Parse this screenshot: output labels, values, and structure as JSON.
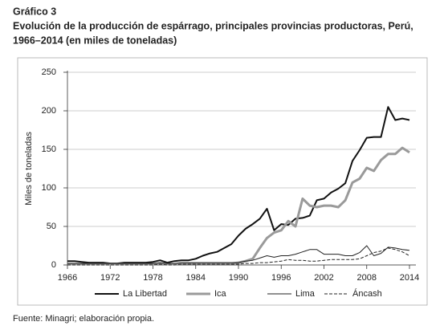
{
  "chart_data": {
    "type": "line",
    "heading": "Gráfico 3",
    "title": [
      "Evolución de la producción de espárrago, principales provincias productoras, Perú,",
      "1966–2014 (en miles de toneladas)"
    ],
    "ylabel": "Miles de toneladas",
    "source": "Fuente: Minagri; elaboración propia.",
    "x": [
      1966,
      1967,
      1968,
      1969,
      1970,
      1971,
      1972,
      1973,
      1974,
      1975,
      1976,
      1977,
      1978,
      1979,
      1980,
      1981,
      1982,
      1983,
      1984,
      1985,
      1986,
      1987,
      1988,
      1989,
      1990,
      1991,
      1992,
      1993,
      1994,
      1995,
      1996,
      1997,
      1998,
      1999,
      2000,
      2001,
      2002,
      2003,
      2004,
      2005,
      2006,
      2007,
      2008,
      2009,
      2010,
      2011,
      2012,
      2013,
      2014
    ],
    "series": [
      {
        "name": "La Libertad",
        "color": "#111111",
        "values": [
          5,
          5,
          4,
          3,
          3,
          3,
          2,
          2,
          3,
          3,
          3,
          3,
          4,
          6,
          3,
          5,
          6,
          6,
          8,
          12,
          15,
          17,
          22,
          27,
          38,
          47,
          53,
          60,
          73,
          45,
          53,
          52,
          60,
          61,
          64,
          84,
          86,
          94,
          99,
          106,
          135,
          149,
          165,
          166,
          166,
          205,
          188,
          190,
          188
        ]
      },
      {
        "name": "Ica",
        "color": "#9a9a9a",
        "values": [
          1,
          1,
          1,
          1,
          1,
          1,
          1,
          1,
          1,
          1,
          1,
          1,
          1,
          2,
          1,
          1,
          2,
          2,
          2,
          2,
          2,
          2,
          2,
          2,
          3,
          5,
          8,
          22,
          35,
          42,
          45,
          57,
          50,
          86,
          77,
          75,
          77,
          77,
          75,
          84,
          107,
          112,
          126,
          122,
          136,
          144,
          144,
          152,
          146
        ]
      },
      {
        "name": "Lima",
        "color": "#222222",
        "values": [
          2,
          2,
          2,
          2,
          2,
          2,
          2,
          2,
          2,
          2,
          2,
          2,
          2,
          3,
          2,
          2,
          3,
          3,
          3,
          3,
          3,
          3,
          3,
          3,
          3,
          5,
          6,
          9,
          12,
          10,
          12,
          12,
          14,
          17,
          20,
          20,
          14,
          14,
          14,
          12,
          12,
          16,
          25,
          12,
          15,
          23,
          22,
          20,
          19
        ]
      },
      {
        "name": "Áncash",
        "color": "#222222",
        "values": [
          0,
          0,
          0,
          0,
          0,
          0,
          0,
          0,
          0,
          0,
          0,
          0,
          0,
          1,
          0,
          0,
          1,
          1,
          1,
          1,
          1,
          1,
          1,
          1,
          1,
          2,
          2,
          3,
          3,
          4,
          5,
          7,
          6,
          6,
          5,
          5,
          6,
          7,
          7,
          7,
          7,
          8,
          12,
          16,
          18,
          22,
          20,
          17,
          12
        ]
      }
    ],
    "xlim": [
      1966,
      2014
    ],
    "xticks": [
      1966,
      1972,
      1978,
      1984,
      1990,
      1996,
      2002,
      2008,
      2014
    ],
    "ylim": [
      0,
      250
    ],
    "yticks": [
      0,
      50,
      100,
      150,
      200,
      250
    ],
    "grid": true,
    "legend": "bottom"
  }
}
